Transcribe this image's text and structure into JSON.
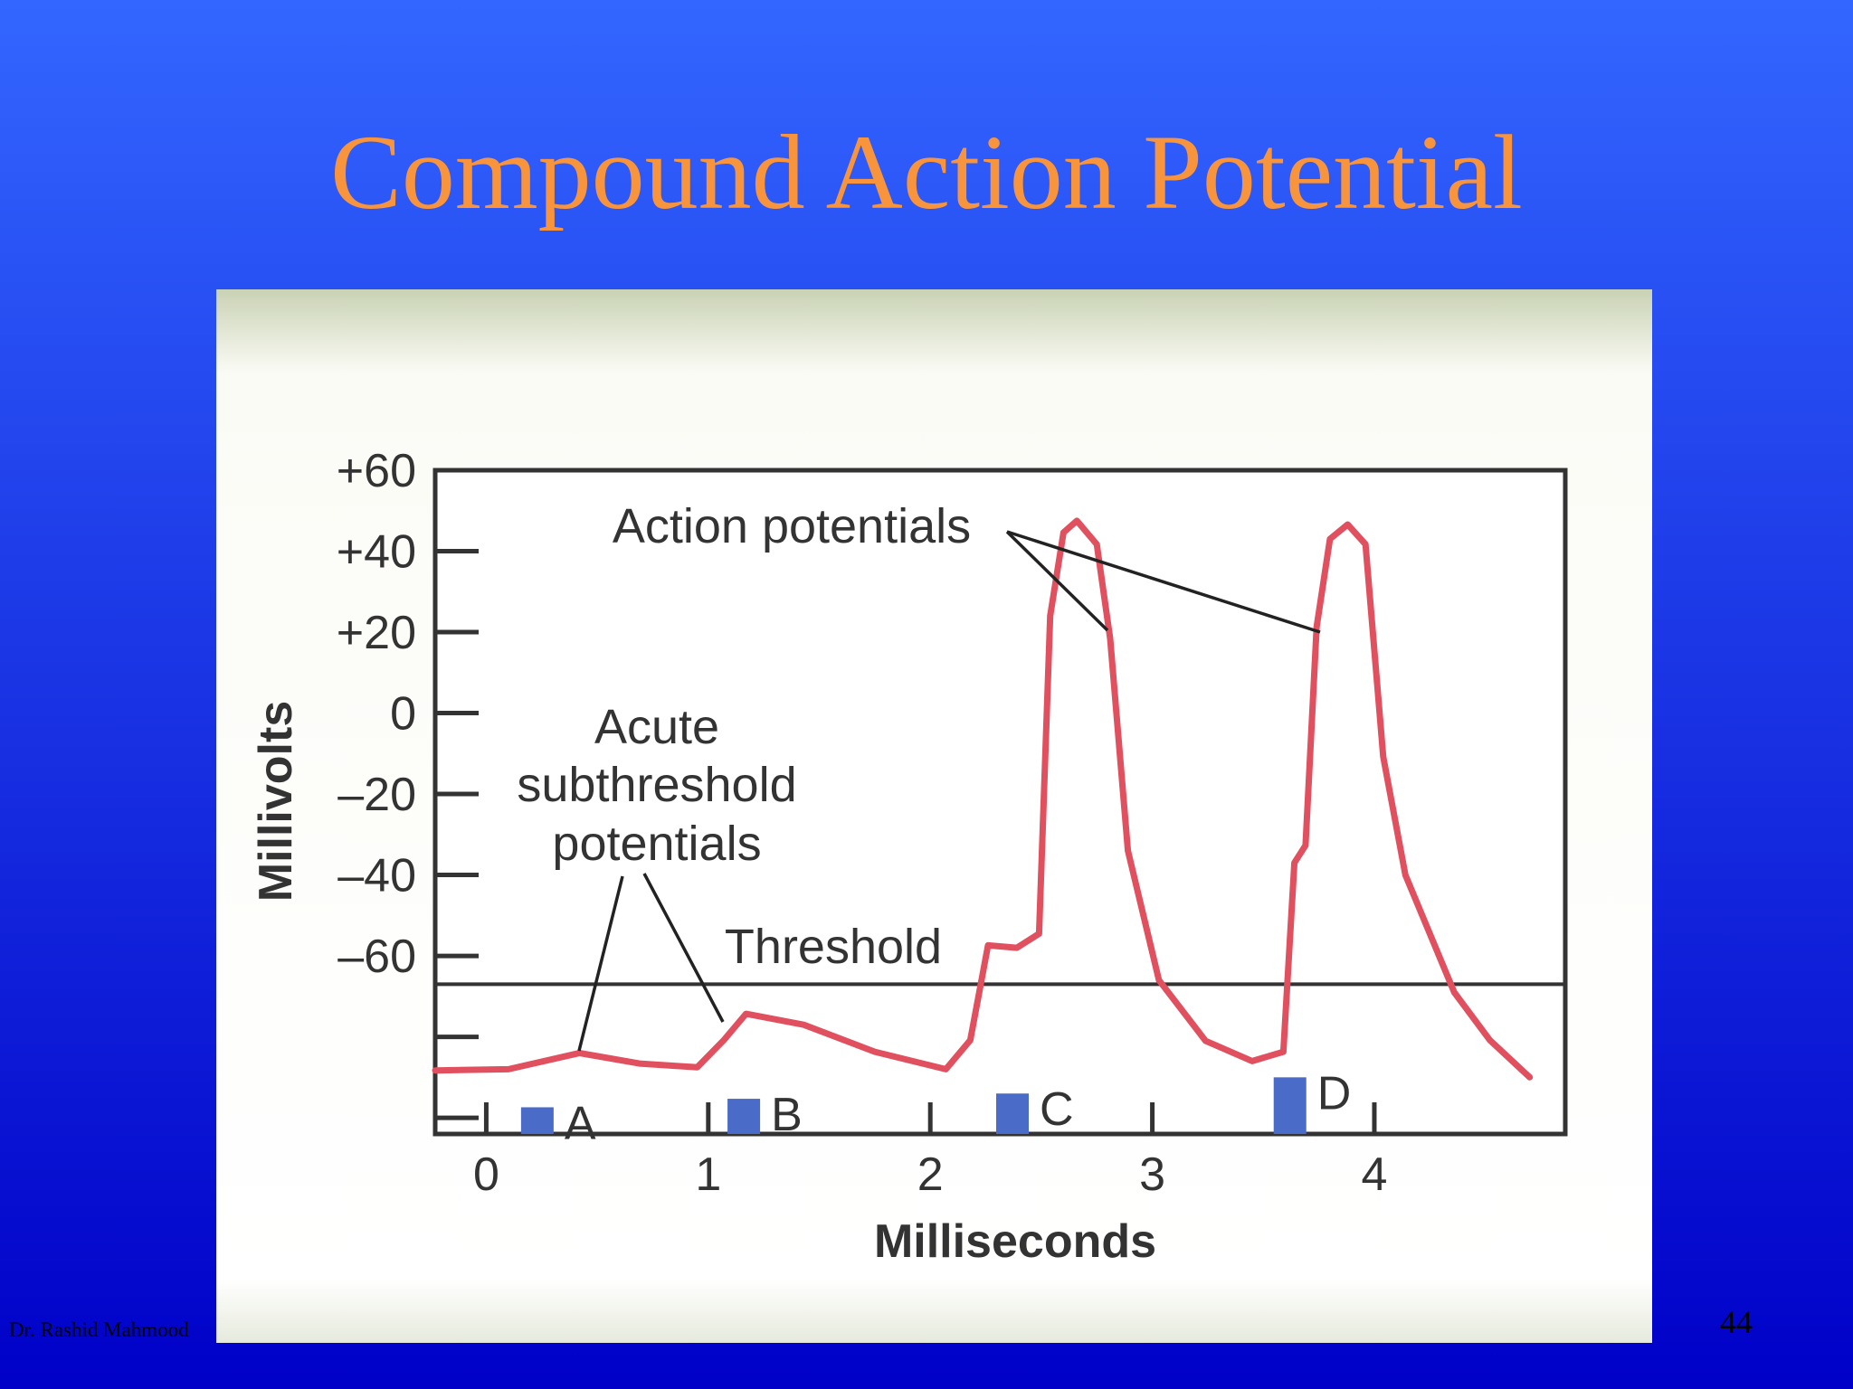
{
  "chart_data": {
    "type": "line",
    "title": "Compound Action Potential",
    "x_label": "Milliseconds",
    "y_label": "Millivolts",
    "xlim": [
      -0.23,
      4.86
    ],
    "ylim": [
      -104,
      60
    ],
    "xticks": [
      0,
      1,
      2,
      3,
      4
    ],
    "yticks": [
      {
        "value": 60,
        "label": "+60"
      },
      {
        "value": 40,
        "label": "+40"
      },
      {
        "value": 20,
        "label": "+20"
      },
      0,
      {
        "value": -20,
        "label": "–20"
      },
      {
        "value": -40,
        "label": "–40"
      },
      {
        "value": -60,
        "label": "–60"
      }
    ],
    "minor_yticks": [
      -80,
      -100
    ],
    "series": [
      {
        "color": "#e0505e",
        "x": [
          -0.23,
          0.1,
          0.42,
          0.69,
          0.95,
          1.07,
          1.17,
          1.43,
          1.75,
          2.07,
          2.18,
          2.26,
          2.39,
          2.49,
          2.54,
          2.6,
          2.66,
          2.75,
          2.81,
          2.89,
          3.03,
          3.24,
          3.45,
          3.59,
          3.64,
          3.69,
          3.74,
          3.8,
          3.88,
          3.96,
          4.04,
          4.14,
          4.36,
          4.52,
          4.7
        ],
        "values": [
          -88.3,
          -88,
          -84,
          -86.6,
          -87.5,
          -80.8,
          -74.3,
          -77,
          -83.7,
          -88,
          -80.8,
          -57.4,
          -58,
          -54.5,
          24,
          44.6,
          47.5,
          41.7,
          18.4,
          -34,
          -66,
          -81,
          -86,
          -83.7,
          -37,
          -32.7,
          21.3,
          43,
          46.6,
          41.7,
          -10.8,
          -40,
          -69,
          -80.8,
          -90
        ]
      }
    ],
    "threshold": {
      "label": "Threshold",
      "value": -67
    },
    "stimuli": {
      "labels": [
        "A",
        "B",
        "C",
        "D"
      ],
      "x": [
        0.23,
        1.16,
        2.37,
        3.62
      ],
      "values": [
        -97.4,
        -95.3,
        -94,
        -90
      ],
      "color": "#4a6cc8"
    },
    "annotations": {
      "action_potentials": "Action potentials",
      "subthreshold": [
        "Acute",
        "subthreshold",
        "potentials"
      ]
    }
  },
  "slide": {
    "author": "Dr. Rashid Mahmood",
    "page": 44
  }
}
